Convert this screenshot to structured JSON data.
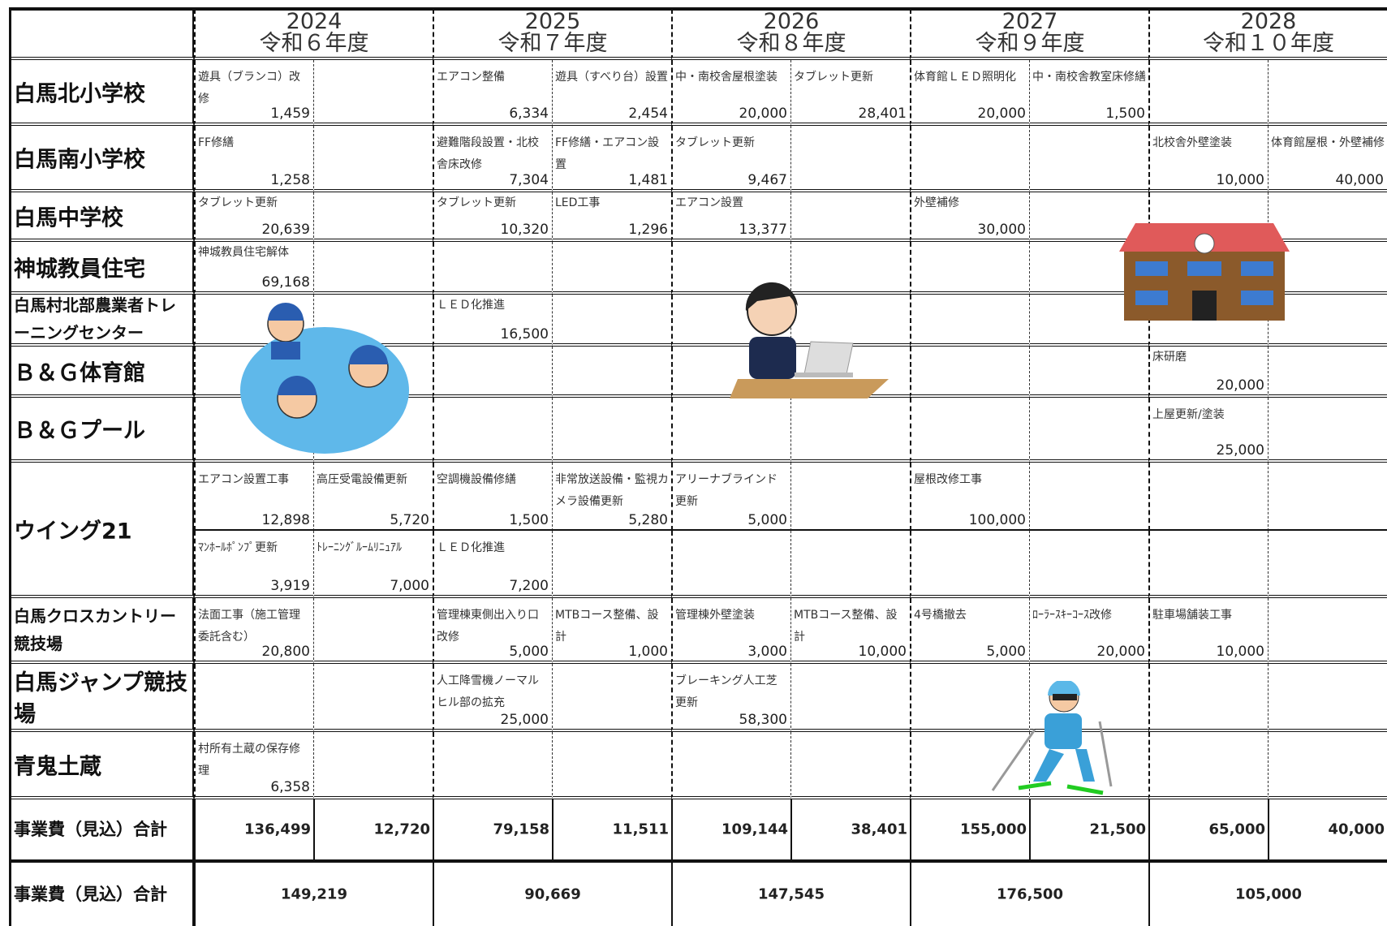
{
  "header": {
    "years": [
      {
        "year": "2024",
        "era": "令和６年度"
      },
      {
        "year": "2025",
        "era": "令和７年度"
      },
      {
        "year": "2026",
        "era": "令和８年度"
      },
      {
        "year": "2027",
        "era": "令和９年度"
      },
      {
        "year": "2028",
        "era": "令和１０年度"
      }
    ]
  },
  "rows": [
    {
      "name": "白馬北小学校",
      "lines": [
        [
          {
            "text": "遊具（ブランコ）改修",
            "amount": "1,459"
          },
          null,
          {
            "text": "エアコン整備",
            "amount": "6,334"
          },
          {
            "text": "遊具（すべり台）設置",
            "amount": "2,454"
          },
          {
            "text": "中・南校舎屋根塗装",
            "amount": "20,000"
          },
          {
            "text": "タブレット更新",
            "amount": "28,401"
          },
          {
            "text": "体育館ＬＥＤ照明化",
            "amount": "20,000"
          },
          {
            "text": "中・南校舎教室床修繕",
            "amount": "1,500"
          },
          null,
          null
        ]
      ]
    },
    {
      "name": "白馬南小学校",
      "lines": [
        [
          {
            "text": "FF修繕",
            "amount": "1,258"
          },
          null,
          {
            "text": "避難階段設置・北校舎床改修",
            "amount": "7,304"
          },
          {
            "text": "FF修繕・エアコン設置",
            "amount": "1,481"
          },
          {
            "text": "タブレット更新",
            "amount": "9,467"
          },
          null,
          null,
          null,
          {
            "text": "北校舎外壁塗装",
            "amount": "10,000"
          },
          {
            "text": "体育館屋根・外壁補修",
            "amount": "40,000"
          }
        ]
      ]
    },
    {
      "name": "白馬中学校",
      "lines": [
        [
          {
            "text": "タブレット更新",
            "amount": "20,639"
          },
          null,
          {
            "text": "タブレット更新",
            "amount": "10,320"
          },
          {
            "text": "LED工事",
            "amount": "1,296"
          },
          {
            "text": "エアコン設置",
            "amount": "13,377"
          },
          null,
          {
            "text": "外壁補修",
            "amount": "30,000"
          },
          null,
          null,
          null
        ]
      ]
    },
    {
      "name": "神城教員住宅",
      "lines": [
        [
          {
            "text": "神城教員住宅解体",
            "amount": "69,168"
          },
          null,
          null,
          null,
          null,
          null,
          null,
          null,
          null,
          null
        ]
      ]
    },
    {
      "name": "白馬村北部農業者トレーニングセンター",
      "lines": [
        [
          null,
          null,
          {
            "text": "ＬＥＤ化推進",
            "amount": "16,500"
          },
          null,
          null,
          null,
          null,
          null,
          null,
          null
        ]
      ]
    },
    {
      "name": "Ｂ＆Ｇ体育館",
      "lines": [
        [
          null,
          null,
          null,
          null,
          null,
          null,
          null,
          null,
          {
            "text": "床研磨",
            "amount": "20,000"
          },
          null
        ]
      ]
    },
    {
      "name": "Ｂ＆Ｇプール",
      "lines": [
        [
          null,
          null,
          null,
          null,
          null,
          null,
          null,
          null,
          {
            "text": "上屋更新/塗装",
            "amount": "25,000"
          },
          null
        ]
      ]
    },
    {
      "name": "ウイング21",
      "lines": [
        [
          {
            "text": "エアコン設置工事",
            "amount": "12,898"
          },
          {
            "text": "高圧受電設備更新",
            "amount": "5,720"
          },
          {
            "text": "空調機設備修繕",
            "amount": "1,500"
          },
          {
            "text": "非常放送設備・監視カメラ設備更新",
            "amount": "5,280"
          },
          {
            "text": "アリーナブラインド更新",
            "amount": "5,000"
          },
          null,
          {
            "text": "屋根改修工事",
            "amount": "100,000"
          },
          null,
          null,
          null
        ],
        [
          {
            "text": "ﾏﾝﾎｰﾙﾎﾟﾝﾌﾟ更新",
            "amount": "3,919"
          },
          {
            "text": "ﾄﾚｰﾆﾝｸﾞﾙｰﾑﾘﾆｭｱﾙ",
            "amount": "7,000"
          },
          {
            "text": "ＬＥＤ化推進",
            "amount": "7,200"
          },
          null,
          null,
          null,
          null,
          null,
          null,
          null
        ]
      ]
    },
    {
      "name": "白馬クロスカントリー競技場",
      "lines": [
        [
          {
            "text": "法面工事（施工管理委託含む）",
            "amount": "20,800"
          },
          null,
          {
            "text": "管理棟東側出入り口改修",
            "amount": "5,000"
          },
          {
            "text": "MTBコース整備、設計",
            "amount": "1,000"
          },
          {
            "text": "管理棟外壁塗装",
            "amount": "3,000"
          },
          {
            "text": "MTBコース整備、設計",
            "amount": "10,000"
          },
          {
            "text": "4号橋撤去",
            "amount": "5,000"
          },
          {
            "text": "ﾛｰﾗｰｽｷｰｺｰｽ改修",
            "amount": "20,000"
          },
          {
            "text": "駐車場舗装工事",
            "amount": "10,000"
          },
          null
        ]
      ]
    },
    {
      "name": "白馬ジャンプ競技場",
      "lines": [
        [
          null,
          null,
          {
            "text": "人工降雪機ノーマルヒル部の拡充",
            "amount": "25,000"
          },
          null,
          {
            "text": "ブレーキング人工芝更新",
            "amount": "58,300"
          },
          null,
          null,
          null,
          null,
          null
        ]
      ]
    },
    {
      "name": "青鬼土蔵",
      "lines": [
        [
          {
            "text": "村所有土蔵の保存修理",
            "amount": "6,358"
          },
          null,
          null,
          null,
          null,
          null,
          null,
          null,
          null,
          null
        ]
      ]
    }
  ],
  "totals": {
    "label": "事業費（見込）合計",
    "values": [
      "136,499",
      "12,720",
      "79,158",
      "11,511",
      "109,144",
      "38,401",
      "155,000",
      "21,500",
      "65,000",
      "40,000"
    ]
  },
  "grand_total": {
    "label": "事業費（見込）合計",
    "values": [
      "149,219",
      "90,669",
      "147,545",
      "176,500",
      "105,000"
    ]
  }
}
